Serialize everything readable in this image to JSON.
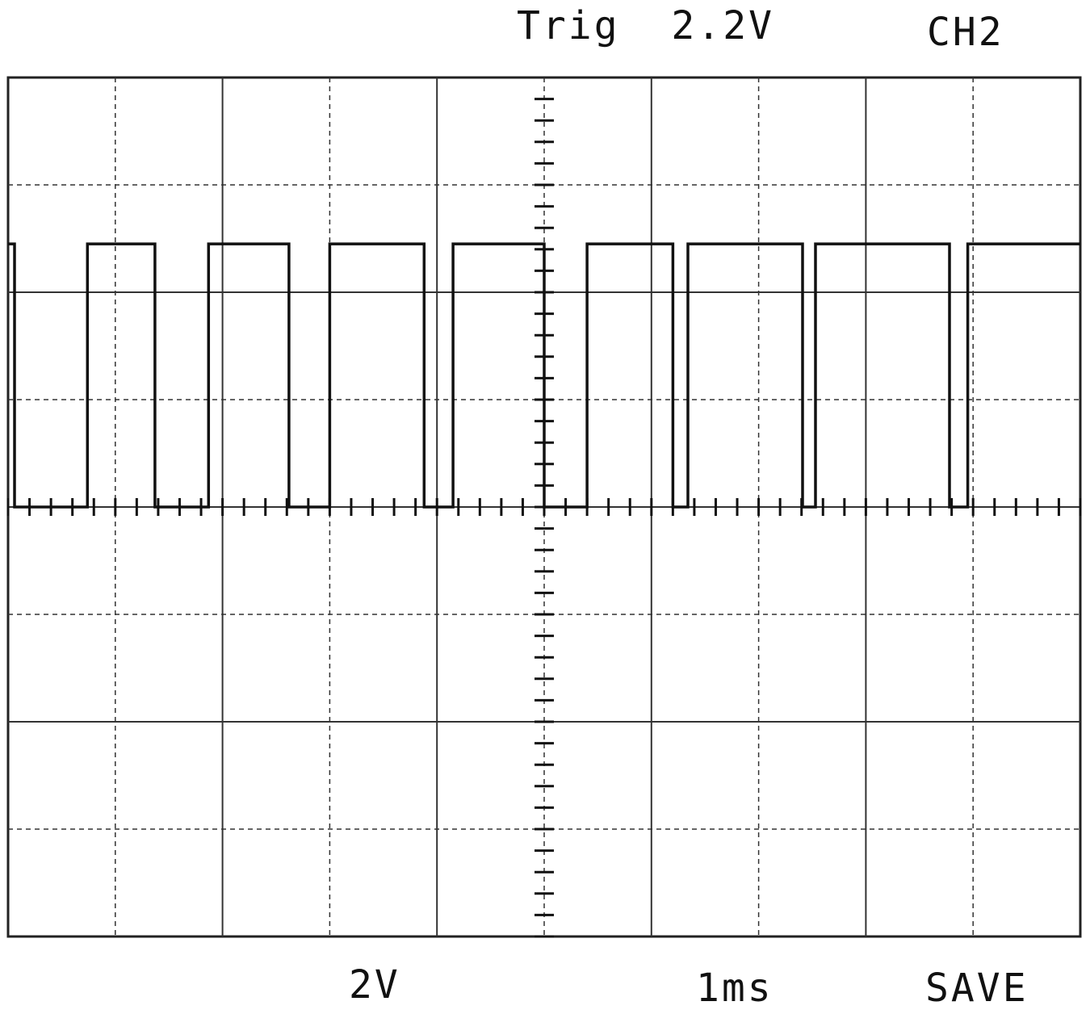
{
  "header": {
    "trigger_label": "Trig  2.2V",
    "channel_label": "CH2"
  },
  "footer": {
    "volts_per_div": "2V",
    "time_per_div": "1ms",
    "mode_label": "SAVE"
  },
  "chart_data": {
    "type": "line",
    "x_divisions": 10,
    "y_divisions": 8,
    "time_unit": "div",
    "volt_unit": "div",
    "baseline_div": 4,
    "grid": true,
    "series": [
      {
        "values_x": [
          0.0,
          0.06,
          0.06,
          0.74,
          0.74,
          1.37,
          1.37,
          1.87,
          1.87,
          2.62,
          2.62,
          3.0,
          3.0,
          3.88,
          3.88,
          4.15,
          4.15,
          5.0,
          5.0,
          5.4,
          5.4,
          6.2,
          6.2,
          6.34,
          6.34,
          7.41,
          7.41,
          7.53,
          7.53,
          8.78,
          8.78,
          8.95,
          8.95,
          10.0
        ],
        "values_y": [
          2.45,
          2.45,
          0.0,
          0.0,
          2.45,
          2.45,
          0.0,
          0.0,
          2.45,
          2.45,
          0.0,
          0.0,
          2.45,
          2.45,
          0.0,
          0.0,
          2.45,
          2.45,
          0.0,
          0.0,
          2.45,
          2.45,
          0.0,
          0.0,
          2.45,
          2.45,
          0.0,
          0.0,
          2.45,
          2.45,
          0.0,
          0.0,
          2.45,
          2.45
        ]
      }
    ]
  }
}
